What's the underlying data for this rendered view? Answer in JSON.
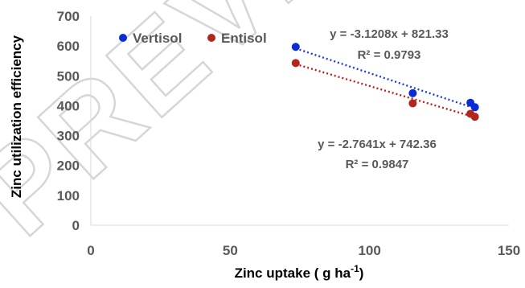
{
  "chart_data": {
    "type": "scatter",
    "xlabel": "Zinc uptake ( g ha",
    "xlabel_superscript": "-1",
    "xlabel_suffix": ")",
    "ylabel": "Zinc utilization efficiency",
    "xlim": [
      0,
      150
    ],
    "ylim": [
      0,
      700
    ],
    "x_ticks": [
      0,
      50,
      100,
      150
    ],
    "y_ticks": [
      0,
      100,
      200,
      300,
      400,
      500,
      600,
      700
    ],
    "grid": false,
    "legend_position": "top-left",
    "series": [
      {
        "name": "Vertisol",
        "color": "#0a2bd6",
        "trendline_color": "#1f3fd6",
        "points": [
          {
            "x": 73.5,
            "y": 597
          },
          {
            "x": 115.5,
            "y": 442
          },
          {
            "x": 136.2,
            "y": 410
          },
          {
            "x": 137.8,
            "y": 395
          }
        ],
        "trendline": {
          "slope": -3.1208,
          "intercept": 821.33,
          "x_range": [
            73.5,
            137.8
          ]
        },
        "equation": "y = -3.1208x + 821.33",
        "r2": "R² = 0.9793"
      },
      {
        "name": "Entisol",
        "color": "#b3261e",
        "trendline_color": "#c0201a",
        "points": [
          {
            "x": 73.5,
            "y": 543
          },
          {
            "x": 115.5,
            "y": 408
          },
          {
            "x": 136.2,
            "y": 373
          },
          {
            "x": 137.8,
            "y": 363
          }
        ],
        "trendline": {
          "slope": -2.7641,
          "intercept": 742.36,
          "x_range": [
            73.5,
            137.8
          ]
        },
        "equation": "y = -2.7641x + 742.36",
        "r2": "R² = 0.9847"
      }
    ]
  },
  "watermark_text": "PREVIEW"
}
